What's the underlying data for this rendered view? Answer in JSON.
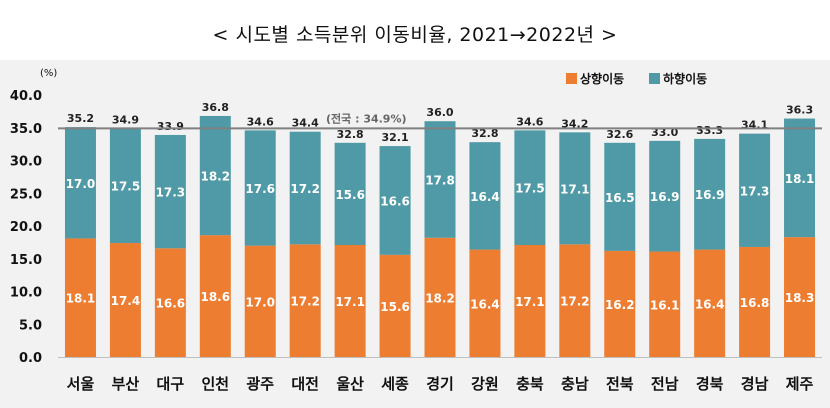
{
  "title": "< 시도별 소득분위 이동비율, 2021→2022년 >",
  "colors": {
    "up": "#ed7d31",
    "down": "#4f9aa6",
    "avg_line": "#808080",
    "band": "#f2f2f2"
  },
  "chart_data": {
    "type": "bar",
    "stacked": true,
    "title": "< 시도별 소득분위 이동비율, 2021→2022년 >",
    "ylabel": "(%)",
    "ylim": [
      0,
      40
    ],
    "yticks": [
      "0.0",
      "5.0",
      "10.0",
      "15.0",
      "20.0",
      "25.0",
      "30.0",
      "35.0",
      "40.0"
    ],
    "legend_position": "top-right",
    "categories": [
      "서울",
      "부산",
      "대구",
      "인천",
      "광주",
      "대전",
      "울산",
      "세종",
      "경기",
      "강원",
      "충북",
      "충남",
      "전북",
      "전남",
      "경북",
      "경남",
      "제주"
    ],
    "series": [
      {
        "name": "상향이동",
        "color": "#ed7d31",
        "values": [
          18.1,
          17.4,
          16.6,
          18.6,
          17.0,
          17.2,
          17.1,
          15.6,
          18.2,
          16.4,
          17.1,
          17.2,
          16.2,
          16.1,
          16.4,
          16.8,
          18.3
        ]
      },
      {
        "name": "하향이동",
        "color": "#4f9aa6",
        "values": [
          17.0,
          17.5,
          17.3,
          18.2,
          17.6,
          17.2,
          15.6,
          16.6,
          17.8,
          16.4,
          17.5,
          17.1,
          16.5,
          16.9,
          16.9,
          17.3,
          18.1
        ]
      }
    ],
    "totals": [
      35.2,
      34.9,
      33.9,
      36.8,
      34.6,
      34.4,
      32.8,
      32.1,
      36.0,
      32.8,
      34.6,
      34.2,
      32.6,
      33.0,
      33.3,
      34.1,
      36.3
    ],
    "reference_line": {
      "value": 34.9,
      "label": "(전국 : 34.9%)"
    }
  }
}
